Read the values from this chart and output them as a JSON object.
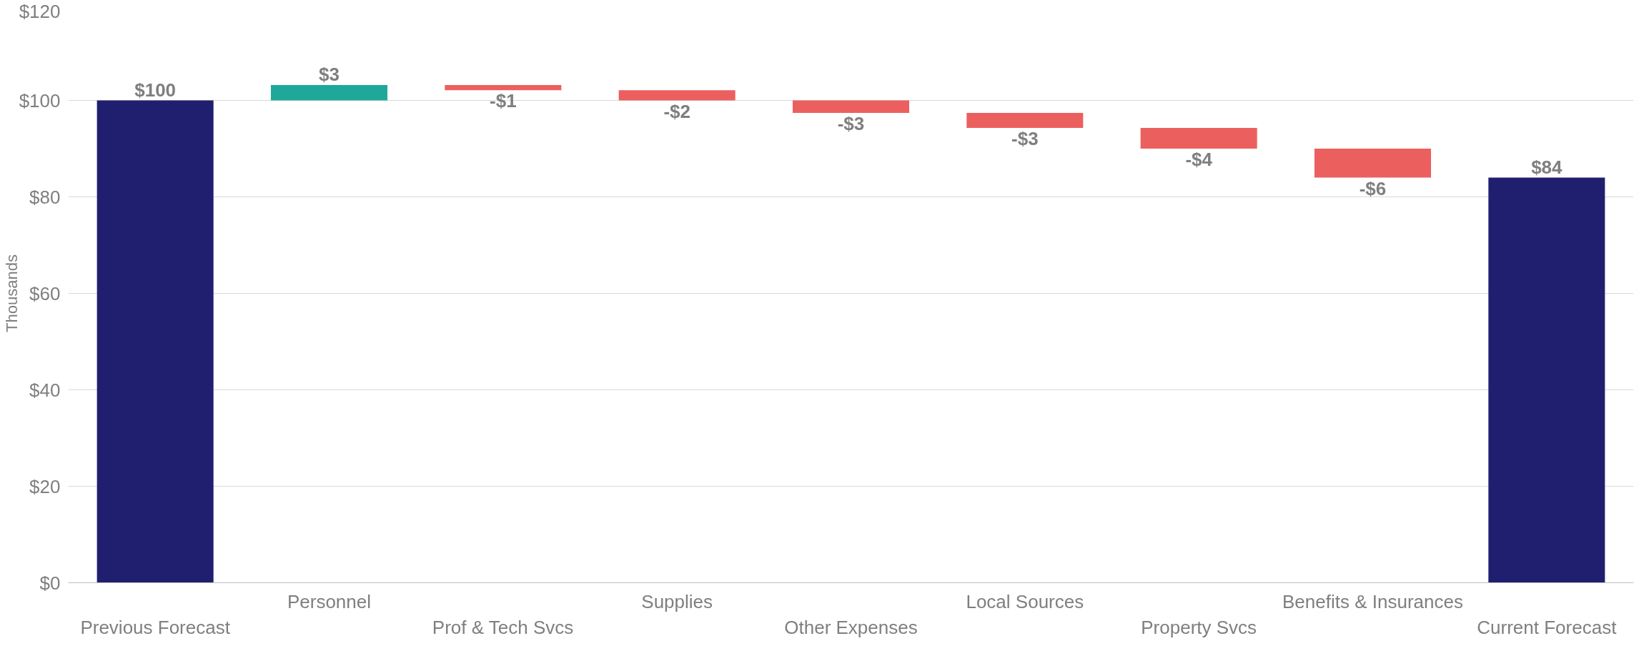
{
  "chart_data": {
    "type": "bar",
    "ylabel": "Thousands",
    "categories": [
      "Previous Forecast",
      "Personnel",
      "Prof & Tech Svcs",
      "Supplies",
      "Other Expenses",
      "Local Sources",
      "Property Svcs",
      "Benefits & Insurances",
      "Current Forecast"
    ],
    "values": [
      100,
      3.2,
      -1.1,
      -2.1,
      -2.6,
      -3.1,
      -4.3,
      -6,
      84
    ],
    "base": [
      0,
      100,
      103.2,
      102.1,
      100,
      97.4,
      94.3,
      90,
      0
    ],
    "colors": [
      "#201f6f",
      "#1fa899",
      "#ec5f5f",
      "#ec5f5f",
      "#ec5f5f",
      "#ec5f5f",
      "#ec5f5f",
      "#ec5f5f",
      "#201f6f"
    ],
    "value_labels": [
      "$100",
      "$3",
      "-$1",
      "-$2",
      "-$3",
      "-$3",
      "-$4",
      "-$6",
      "$84"
    ],
    "ylim": [
      0,
      120
    ],
    "yticks": [
      {
        "value": 0,
        "label": "$0"
      },
      {
        "value": 20,
        "label": "$20"
      },
      {
        "value": 40,
        "label": "$40"
      },
      {
        "value": 60,
        "label": "$60"
      },
      {
        "value": 80,
        "label": "$80"
      },
      {
        "value": 100,
        "label": "$100"
      },
      {
        "value": 120,
        "label": "$120"
      }
    ],
    "grid": "y"
  }
}
